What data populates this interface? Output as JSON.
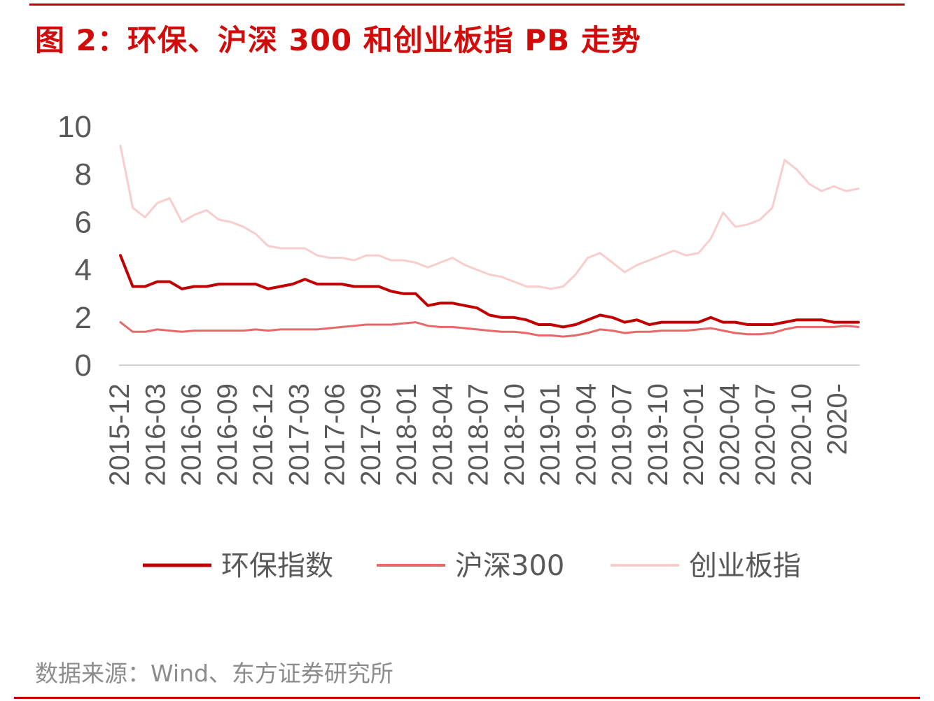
{
  "title": "图 2：环保、沪深 300 和创业板指 PB 走势",
  "source": "数据来源：Wind、东方证券研究所",
  "colors": {
    "accent": "#d10a0a",
    "rule": "#c00000",
    "axis_text": "#595959",
    "source_text": "#8c8c8c"
  },
  "chart_data": {
    "type": "line",
    "title": "",
    "xlabel": "",
    "ylabel": "",
    "ylim": [
      0,
      10
    ],
    "yticks": [
      0,
      2,
      4,
      6,
      8,
      10
    ],
    "grid": false,
    "legend_position": "bottom",
    "x_tick_labels": [
      "2015-12",
      "2016-03",
      "2016-06",
      "2016-09",
      "2016-12",
      "2017-03",
      "2017-06",
      "2017-09",
      "2018-01",
      "2018-04",
      "2018-07",
      "2018-10",
      "2019-01",
      "2019-04",
      "2019-07",
      "2019-10",
      "2020-01",
      "2020-04",
      "2020-07",
      "2020-10",
      "2020-"
    ],
    "x": [
      "2015-12",
      "2016-01",
      "2016-02",
      "2016-03",
      "2016-04",
      "2016-05",
      "2016-06",
      "2016-07",
      "2016-08",
      "2016-09",
      "2016-10",
      "2016-11",
      "2016-12",
      "2017-01",
      "2017-02",
      "2017-03",
      "2017-04",
      "2017-05",
      "2017-06",
      "2017-07",
      "2017-08",
      "2017-09",
      "2017-10",
      "2017-11",
      "2018-01",
      "2018-02",
      "2018-03",
      "2018-04",
      "2018-05",
      "2018-06",
      "2018-07",
      "2018-08",
      "2018-09",
      "2018-10",
      "2018-11",
      "2018-12",
      "2019-01",
      "2019-02",
      "2019-03",
      "2019-04",
      "2019-05",
      "2019-06",
      "2019-07",
      "2019-08",
      "2019-09",
      "2019-10",
      "2019-11",
      "2019-12",
      "2020-01",
      "2020-02",
      "2020-03",
      "2020-04",
      "2020-05",
      "2020-06",
      "2020-07",
      "2020-08",
      "2020-09",
      "2020-10",
      "2020-11",
      "2020-12",
      "2021-01"
    ],
    "series": [
      {
        "name": "环保指数",
        "color": "#c00000",
        "width": 4,
        "values": [
          4.6,
          3.3,
          3.3,
          3.5,
          3.5,
          3.2,
          3.3,
          3.3,
          3.4,
          3.4,
          3.4,
          3.4,
          3.2,
          3.3,
          3.4,
          3.6,
          3.4,
          3.4,
          3.4,
          3.3,
          3.3,
          3.3,
          3.1,
          3.0,
          3.0,
          2.5,
          2.6,
          2.6,
          2.5,
          2.4,
          2.1,
          2.0,
          2.0,
          1.9,
          1.7,
          1.7,
          1.6,
          1.7,
          1.9,
          2.1,
          2.0,
          1.8,
          1.9,
          1.7,
          1.8,
          1.8,
          1.8,
          1.8,
          2.0,
          1.8,
          1.8,
          1.7,
          1.7,
          1.7,
          1.8,
          1.9,
          1.9,
          1.9,
          1.8,
          1.8,
          1.8
        ]
      },
      {
        "name": "沪深300",
        "color": "#e8686a",
        "width": 3,
        "values": [
          1.8,
          1.4,
          1.4,
          1.5,
          1.45,
          1.4,
          1.45,
          1.45,
          1.45,
          1.45,
          1.45,
          1.5,
          1.45,
          1.5,
          1.5,
          1.5,
          1.5,
          1.55,
          1.6,
          1.65,
          1.7,
          1.7,
          1.7,
          1.75,
          1.8,
          1.65,
          1.6,
          1.6,
          1.55,
          1.5,
          1.45,
          1.4,
          1.4,
          1.35,
          1.25,
          1.25,
          1.2,
          1.25,
          1.35,
          1.5,
          1.45,
          1.35,
          1.4,
          1.4,
          1.45,
          1.45,
          1.45,
          1.5,
          1.55,
          1.45,
          1.35,
          1.3,
          1.3,
          1.35,
          1.5,
          1.6,
          1.6,
          1.6,
          1.6,
          1.65,
          1.6
        ]
      },
      {
        "name": "创业板指",
        "color": "#f8cdcd",
        "width": 3,
        "values": [
          9.2,
          6.6,
          6.2,
          6.8,
          7.0,
          6.0,
          6.3,
          6.5,
          6.1,
          6.0,
          5.8,
          5.5,
          5.0,
          4.9,
          4.9,
          4.9,
          4.6,
          4.5,
          4.5,
          4.4,
          4.6,
          4.6,
          4.4,
          4.4,
          4.3,
          4.1,
          4.3,
          4.5,
          4.2,
          4.0,
          3.8,
          3.7,
          3.5,
          3.3,
          3.3,
          3.2,
          3.3,
          3.8,
          4.5,
          4.7,
          4.3,
          3.9,
          4.2,
          4.4,
          4.6,
          4.8,
          4.6,
          4.7,
          5.3,
          6.4,
          5.8,
          5.9,
          6.1,
          6.6,
          8.6,
          8.2,
          7.6,
          7.3,
          7.5,
          7.3,
          7.4
        ]
      }
    ]
  }
}
